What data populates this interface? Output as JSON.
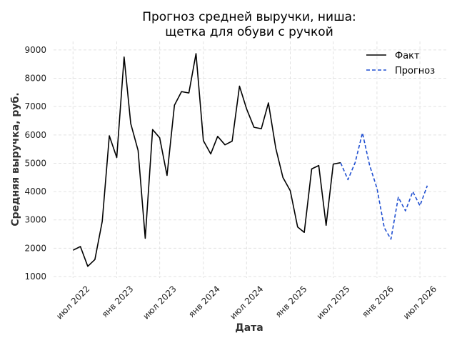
{
  "chart_data": {
    "type": "line",
    "title_line1": "Прогноз средней выручки, ниша:",
    "title_line2": "щетка для обуви с ручкой",
    "xlabel": "Дата",
    "ylabel": "Средняя выручка, руб.",
    "xlim": [
      "2022-04-10",
      "2026-10-20"
    ],
    "ylim": [
      950,
      9300
    ],
    "yticks": [
      1000,
      2000,
      3000,
      4000,
      5000,
      6000,
      7000,
      8000,
      9000
    ],
    "xticks": [
      {
        "date": "2022-07-01",
        "label": "июл 2022"
      },
      {
        "date": "2023-01-01",
        "label": "янв 2023"
      },
      {
        "date": "2023-07-01",
        "label": "июл 2023"
      },
      {
        "date": "2024-01-01",
        "label": "янв 2024"
      },
      {
        "date": "2024-07-01",
        "label": "июл 2024"
      },
      {
        "date": "2025-01-01",
        "label": "янв 2025"
      },
      {
        "date": "2025-07-01",
        "label": "июл 2025"
      },
      {
        "date": "2026-01-01",
        "label": "янв 2026"
      },
      {
        "date": "2026-07-01",
        "label": "июл 2026"
      }
    ],
    "grid": true,
    "legend_position": "top-right",
    "series": [
      {
        "name": "Факт",
        "color": "#000000",
        "style": "solid",
        "points": [
          [
            "2022-07-01",
            1930
          ],
          [
            "2022-08-01",
            2060
          ],
          [
            "2022-09-01",
            1360
          ],
          [
            "2022-10-01",
            1600
          ],
          [
            "2022-11-01",
            2950
          ],
          [
            "2022-12-01",
            5970
          ],
          [
            "2023-01-01",
            5200
          ],
          [
            "2023-02-01",
            8750
          ],
          [
            "2023-03-01",
            6400
          ],
          [
            "2023-04-01",
            5450
          ],
          [
            "2023-05-01",
            2350
          ],
          [
            "2023-06-01",
            6190
          ],
          [
            "2023-07-01",
            5900
          ],
          [
            "2023-08-01",
            4570
          ],
          [
            "2023-09-01",
            7050
          ],
          [
            "2023-10-01",
            7530
          ],
          [
            "2023-11-01",
            7480
          ],
          [
            "2023-12-01",
            8870
          ],
          [
            "2024-01-01",
            5800
          ],
          [
            "2024-02-01",
            5330
          ],
          [
            "2024-03-01",
            5950
          ],
          [
            "2024-04-01",
            5650
          ],
          [
            "2024-05-01",
            5780
          ],
          [
            "2024-06-01",
            7720
          ],
          [
            "2024-07-01",
            6920
          ],
          [
            "2024-08-01",
            6270
          ],
          [
            "2024-09-01",
            6220
          ],
          [
            "2024-10-01",
            7130
          ],
          [
            "2024-11-01",
            5530
          ],
          [
            "2024-12-01",
            4500
          ],
          [
            "2025-01-01",
            4030
          ],
          [
            "2025-02-01",
            2750
          ],
          [
            "2025-03-01",
            2560
          ],
          [
            "2025-04-01",
            4800
          ],
          [
            "2025-05-01",
            4920
          ],
          [
            "2025-06-01",
            2810
          ],
          [
            "2025-07-01",
            4970
          ],
          [
            "2025-08-01",
            5020
          ]
        ]
      },
      {
        "name": "Прогноз",
        "color": "#1f4fd1",
        "style": "dashed",
        "points": [
          [
            "2025-08-01",
            5020
          ],
          [
            "2025-09-01",
            4420
          ],
          [
            "2025-10-01",
            5020
          ],
          [
            "2025-11-01",
            6070
          ],
          [
            "2025-12-01",
            4930
          ],
          [
            "2026-01-01",
            4120
          ],
          [
            "2026-02-01",
            2720
          ],
          [
            "2026-03-01",
            2320
          ],
          [
            "2026-04-01",
            3800
          ],
          [
            "2026-05-01",
            3320
          ],
          [
            "2026-06-01",
            4000
          ],
          [
            "2026-07-01",
            3500
          ],
          [
            "2026-08-01",
            4210
          ]
        ]
      }
    ]
  }
}
